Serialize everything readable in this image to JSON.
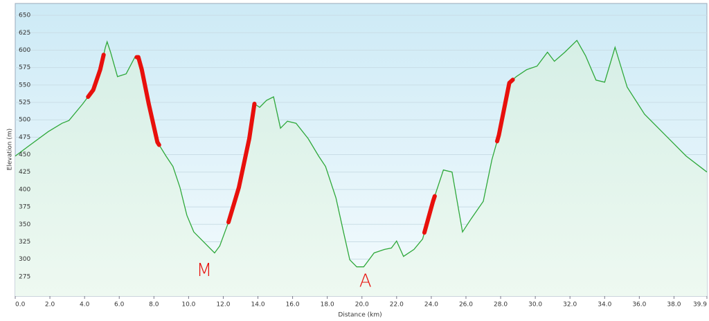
{
  "chart_data": {
    "type": "area",
    "x_label": "Distance (km)",
    "y_label": "Elevation (m)",
    "x": [
      0,
      0.7,
      1.9,
      2.7,
      3.1,
      3.9,
      4.5,
      4.9,
      5.2,
      5.3,
      5.5,
      5.9,
      6.4,
      6.9,
      7.1,
      7.3,
      7.7,
      8.2,
      8.7,
      9.1,
      9.5,
      9.9,
      10.3,
      10.9,
      11.5,
      11.8,
      12.3,
      12.9,
      13.5,
      13.8,
      14.1,
      14.5,
      14.9,
      15.3,
      15.7,
      16.2,
      16.9,
      17.5,
      17.9,
      18.5,
      18.9,
      19.3,
      19.7,
      20.1,
      20.7,
      21.3,
      21.7,
      22.0,
      22.4,
      23.0,
      23.5,
      24.1,
      24.7,
      25.2,
      25.8,
      26.3,
      27.0,
      27.5,
      27.9,
      28.5,
      28.9,
      29.5,
      30.1,
      30.7,
      31.1,
      31.7,
      32.4,
      32.9,
      33.5,
      34.0,
      34.6,
      35.3,
      36.3,
      37.5,
      38.7,
      39.9
    ],
    "values": [
      448,
      461,
      483,
      495,
      499,
      523,
      543,
      572,
      604,
      612,
      597,
      562,
      566,
      590,
      590,
      572,
      523,
      468,
      448,
      433,
      403,
      363,
      339,
      324,
      309,
      319,
      353,
      403,
      473,
      523,
      518,
      528,
      533,
      488,
      498,
      495,
      473,
      448,
      433,
      388,
      343,
      299,
      289,
      289,
      309,
      314,
      316,
      326,
      304,
      314,
      329,
      383,
      428,
      425,
      339,
      358,
      383,
      443,
      478,
      553,
      562,
      572,
      577,
      597,
      584,
      597,
      614,
      592,
      557,
      554,
      604,
      547,
      508,
      478,
      448,
      425
    ],
    "color": "#2ea83a",
    "highlights": [
      [
        4.2,
        5.1
      ],
      [
        7.0,
        8.3
      ],
      [
        12.3,
        13.8
      ],
      [
        23.6,
        24.2
      ],
      [
        27.8,
        28.7
      ]
    ],
    "highlight_color": "#e8100c",
    "annotations": [
      {
        "text": "M",
        "x": 10.9,
        "y": 283
      },
      {
        "text": "A",
        "x": 20.2,
        "y": 268
      }
    ],
    "xlim": [
      0,
      39.9
    ],
    "ylim": [
      247,
      667
    ],
    "xticks": [
      {
        "value": 0,
        "label": "0.0"
      },
      {
        "value": 2,
        "label": "2.0"
      },
      {
        "value": 4,
        "label": "4.0"
      },
      {
        "value": 6,
        "label": "6.0"
      },
      {
        "value": 8,
        "label": "8.0"
      },
      {
        "value": 10,
        "label": "10.0"
      },
      {
        "value": 12,
        "label": "12.0"
      },
      {
        "value": 14,
        "label": "14.0"
      },
      {
        "value": 16,
        "label": "16.0"
      },
      {
        "value": 18,
        "label": "18.0"
      },
      {
        "value": 20,
        "label": "20.0"
      },
      {
        "value": 22,
        "label": "22.0"
      },
      {
        "value": 24,
        "label": "24.0"
      },
      {
        "value": 26,
        "label": "26.0"
      },
      {
        "value": 28,
        "label": "28.0"
      },
      {
        "value": 30,
        "label": "30.0"
      },
      {
        "value": 32,
        "label": "32.0"
      },
      {
        "value": 34,
        "label": "34.0"
      },
      {
        "value": 36,
        "label": "36.0"
      },
      {
        "value": 38,
        "label": "38.0"
      },
      {
        "value": 39.9,
        "label": "39.9"
      }
    ],
    "yticks": [
      275,
      300,
      325,
      350,
      375,
      400,
      425,
      450,
      475,
      500,
      525,
      550,
      575,
      600,
      625,
      650
    ],
    "grid": true
  }
}
